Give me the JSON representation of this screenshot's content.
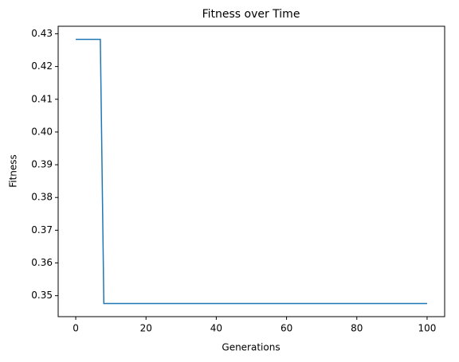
{
  "chart_data": {
    "type": "line",
    "title": "Fitness over Time",
    "x_label": "Generations",
    "y_label": "Fitness",
    "x": [
      0,
      1,
      2,
      3,
      4,
      5,
      6,
      7,
      8,
      9,
      10,
      11,
      12,
      13,
      14,
      15,
      16,
      17,
      18,
      19,
      20,
      21,
      22,
      23,
      24,
      25,
      26,
      27,
      28,
      29,
      30,
      31,
      32,
      33,
      34,
      35,
      36,
      37,
      38,
      39,
      40,
      41,
      42,
      43,
      44,
      45,
      46,
      47,
      48,
      49,
      50,
      51,
      52,
      53,
      54,
      55,
      56,
      57,
      58,
      59,
      60,
      61,
      62,
      63,
      64,
      65,
      66,
      67,
      68,
      69,
      70,
      71,
      72,
      73,
      74,
      75,
      76,
      77,
      78,
      79,
      80,
      81,
      82,
      83,
      84,
      85,
      86,
      87,
      88,
      89,
      90,
      91,
      92,
      93,
      94,
      95,
      96,
      97,
      98,
      99,
      100
    ],
    "values": [
      0.4283,
      0.4283,
      0.4283,
      0.4283,
      0.4283,
      0.4283,
      0.4283,
      0.4283,
      0.3476,
      0.3476,
      0.3476,
      0.3476,
      0.3476,
      0.3476,
      0.3476,
      0.3476,
      0.3476,
      0.3476,
      0.3476,
      0.3476,
      0.3476,
      0.3476,
      0.3476,
      0.3476,
      0.3476,
      0.3476,
      0.3476,
      0.3476,
      0.3476,
      0.3476,
      0.3476,
      0.3476,
      0.3476,
      0.3476,
      0.3476,
      0.3476,
      0.3476,
      0.3476,
      0.3476,
      0.3476,
      0.3476,
      0.3476,
      0.3476,
      0.3476,
      0.3476,
      0.3476,
      0.3476,
      0.3476,
      0.3476,
      0.3476,
      0.3476,
      0.3476,
      0.3476,
      0.3476,
      0.3476,
      0.3476,
      0.3476,
      0.3476,
      0.3476,
      0.3476,
      0.3476,
      0.3476,
      0.3476,
      0.3476,
      0.3476,
      0.3476,
      0.3476,
      0.3476,
      0.3476,
      0.3476,
      0.3476,
      0.3476,
      0.3476,
      0.3476,
      0.3476,
      0.3476,
      0.3476,
      0.3476,
      0.3476,
      0.3476,
      0.3476,
      0.3476,
      0.3476,
      0.3476,
      0.3476,
      0.3476,
      0.3476,
      0.3476,
      0.3476,
      0.3476,
      0.3476,
      0.3476,
      0.3476,
      0.3476,
      0.3476,
      0.3476,
      0.3476,
      0.3476,
      0.3476,
      0.3476,
      0.3476
    ],
    "color": "#1f77b4",
    "xlim": [
      -5,
      105
    ],
    "xticks": [
      0,
      20,
      40,
      60,
      80,
      100
    ],
    "ylim": [
      0.3436,
      0.4323
    ],
    "yticks": [
      0.35,
      0.36,
      0.37,
      0.38,
      0.39,
      {
        "value": 0.4,
        "label": "0.40"
      },
      0.41,
      0.42,
      0.43
    ]
  }
}
